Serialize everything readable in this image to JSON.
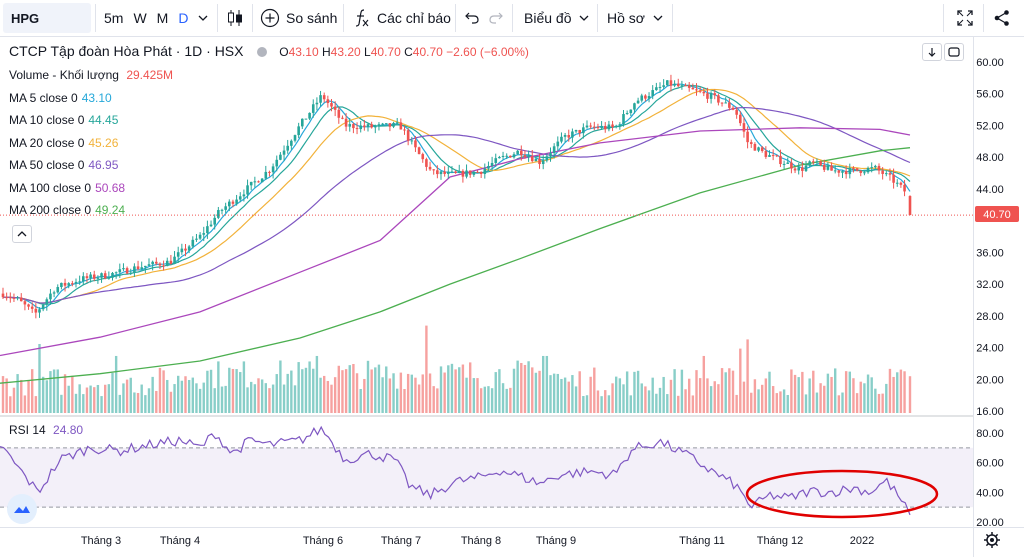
{
  "toolbar": {
    "symbol": "HPG",
    "intervals": [
      "5m",
      "W",
      "M",
      "D"
    ],
    "active_interval": "D",
    "compare_label": "So sánh",
    "indicators_label": "Các chỉ báo",
    "chart_type_label": "Biểu đồ",
    "profile_label": "Hồ sơ"
  },
  "legend": {
    "title": "CTCP Tập đoàn Hòa Phát · 1D · HSX",
    "ohlc": [
      {
        "k": "O",
        "v": "43.10"
      },
      {
        "k": "H",
        "v": "43.20"
      },
      {
        "k": "L",
        "v": "40.70"
      },
      {
        "k": "C",
        "v": "40.70"
      }
    ],
    "change": "−2.60 (−6.00%)",
    "volume_label": "Volume - Khối lượng",
    "volume_value": "29.425M",
    "ma": [
      {
        "label": "MA 5 close 0",
        "value": "43.10",
        "color": "#26a8d9"
      },
      {
        "label": "MA 10 close 0",
        "value": "44.45",
        "color": "#26a69a"
      },
      {
        "label": "MA 20 close 0",
        "value": "45.26",
        "color": "#f2b23a"
      },
      {
        "label": "MA 50 close 0",
        "value": "46.95",
        "color": "#7e57c2"
      },
      {
        "label": "MA 100 close 0",
        "value": "50.68",
        "color": "#ab47bc"
      },
      {
        "label": "MA 200 close 0",
        "value": "49.24",
        "color": "#4caf50"
      }
    ],
    "rsi_label": "RSI 14",
    "rsi_value": "24.80"
  },
  "price_axis": {
    "ticks": [
      "60.00",
      "56.00",
      "52.00",
      "48.00",
      "44.00",
      "40.00",
      "36.00",
      "32.00",
      "28.00",
      "24.00",
      "20.00",
      "16.00"
    ],
    "last_price": "40.70"
  },
  "rsi_axis": {
    "ticks": [
      "80.00",
      "60.00",
      "40.00",
      "20.00"
    ]
  },
  "time_axis": {
    "labels": [
      "Tháng 3",
      "Tháng 4",
      "Tháng 6",
      "Tháng 7",
      "Tháng 8",
      "Tháng 9",
      "Tháng 11",
      "Tháng 12",
      "2022"
    ]
  },
  "colors": {
    "up": "#26a69a",
    "down": "#ef5350",
    "rsi_line": "#7e57c2",
    "rsi_band": "#7e57c2",
    "annotation": "#e00000"
  },
  "chart_data": {
    "type": "candlestick",
    "symbol": "HPG",
    "price_range": [
      16,
      62
    ],
    "rsi_range": [
      20,
      85
    ],
    "rsi_levels": [
      70,
      30
    ],
    "ma_series_last": {
      "MA5": 43.1,
      "MA10": 44.45,
      "MA20": 45.26,
      "MA50": 46.95,
      "MA100": 50.68,
      "MA200": 49.24
    },
    "last": {
      "open": 43.1,
      "high": 43.2,
      "low": 40.7,
      "close": 40.7,
      "volume": "29.425M",
      "rsi": 24.8
    }
  }
}
